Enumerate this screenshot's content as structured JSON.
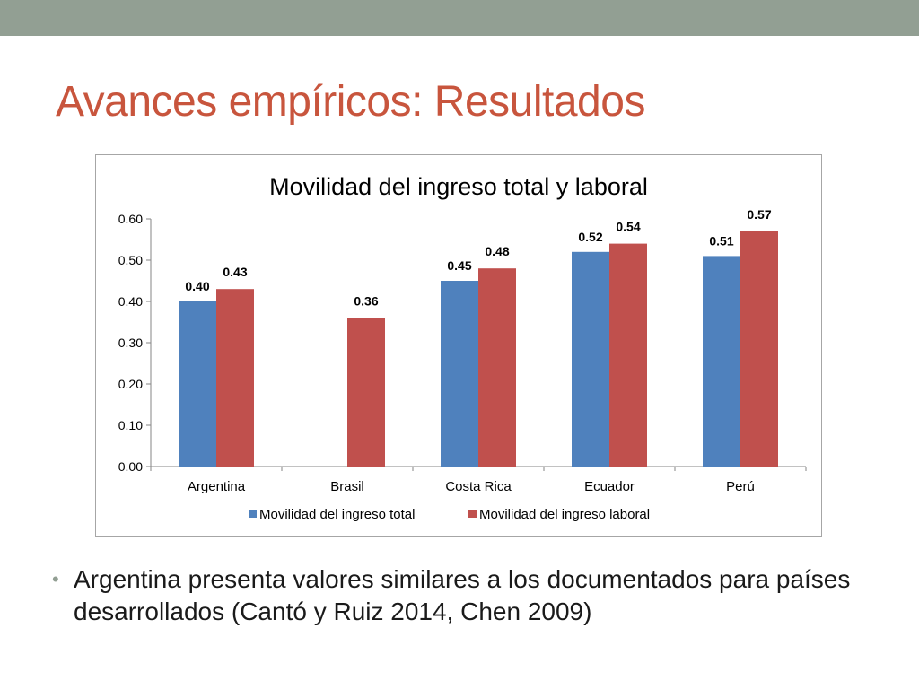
{
  "slide": {
    "title": "Avances empíricos: Resultados",
    "bullets": [
      "Argentina presenta valores similares a los documentados para países desarrollados (Cantó y Ruiz 2014, Chen 2009)"
    ]
  },
  "colors": {
    "top_bar": "#929f93",
    "title": "#c8553d",
    "series_total": "#4f81bd",
    "series_laboral": "#c0504d"
  },
  "chart_data": {
    "type": "bar",
    "title": "Movilidad del ingreso total y laboral",
    "xlabel": "",
    "ylabel": "",
    "categories": [
      "Argentina",
      "Brasil",
      "Costa Rica",
      "Ecuador",
      "Perú"
    ],
    "series": [
      {
        "name": "Movilidad del ingreso total",
        "color": "#4f81bd",
        "values": [
          0.4,
          null,
          0.45,
          0.52,
          0.51
        ]
      },
      {
        "name": "Movilidad del ingreso laboral",
        "color": "#c0504d",
        "values": [
          0.43,
          0.36,
          0.48,
          0.54,
          0.57
        ]
      }
    ],
    "ylim": [
      0,
      0.6
    ],
    "yticks": [
      "0.00",
      "0.10",
      "0.20",
      "0.30",
      "0.40",
      "0.50",
      "0.60"
    ],
    "data_labels": [
      [
        "0.40",
        null,
        "0.45",
        "0.52",
        "0.51"
      ],
      [
        "0.43",
        "0.36",
        "0.48",
        "0.54",
        "0.57"
      ]
    ],
    "grid": false,
    "legend": "bottom"
  }
}
